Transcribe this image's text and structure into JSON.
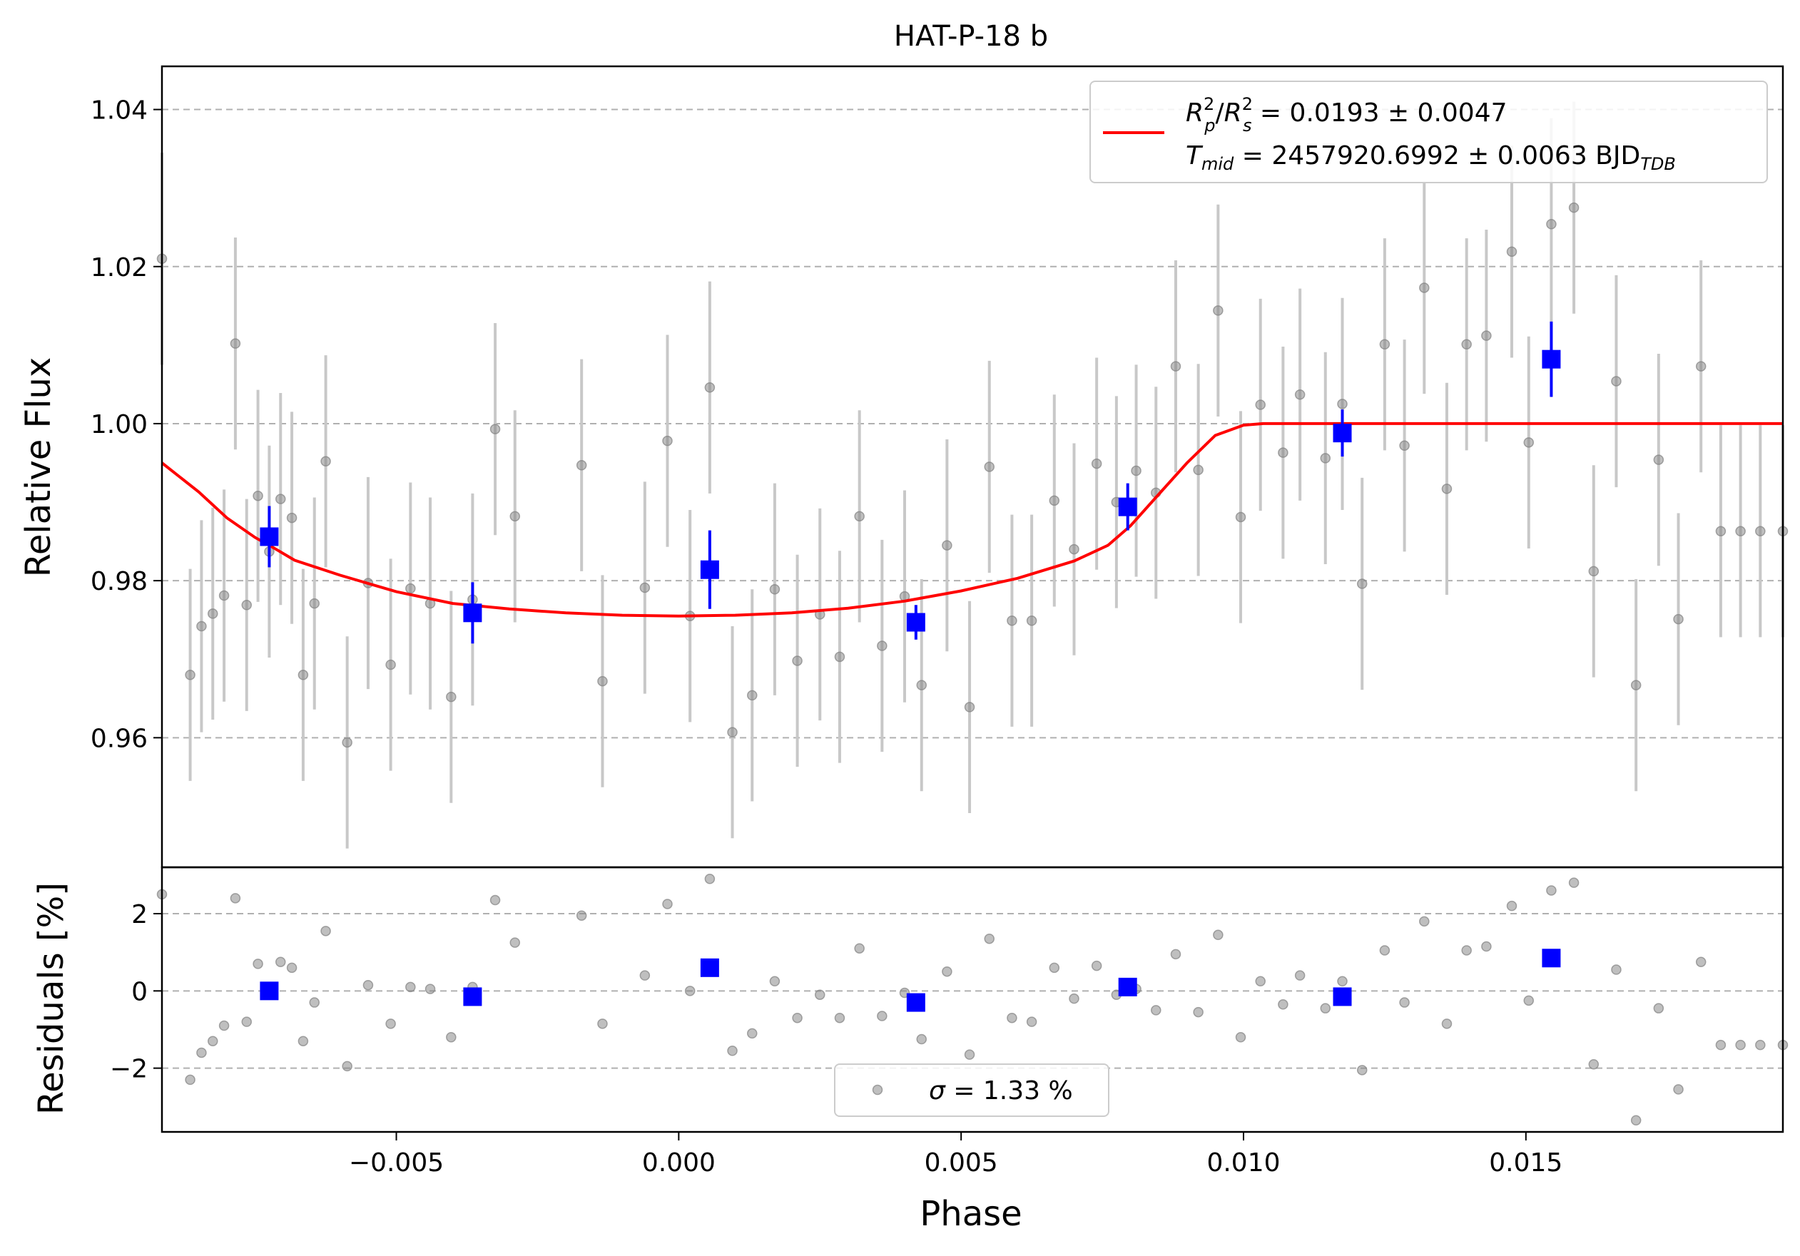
{
  "colors": {
    "model_line": "#ff0000",
    "binned": "#0000ff",
    "raw_points": "#808080",
    "raw_errorbars": "#c8c8c8",
    "grid": "#b0b0b0"
  },
  "chart_data": [
    {
      "type": "scatter",
      "title": "HAT-P-18 b",
      "xlabel": "",
      "ylabel": "Relative Flux",
      "xlim": [
        -0.00915,
        0.01955
      ],
      "ylim": [
        0.9435,
        1.0455
      ],
      "yticks": [
        0.96,
        0.98,
        1.0,
        1.02,
        1.04
      ],
      "ytick_labels": [
        "0.96",
        "0.98",
        "1.00",
        "1.02",
        "1.04"
      ],
      "grid": "y-dashed",
      "legend_position": "top-right",
      "legend": {
        "rp_label": "R",
        "rp_sub": "p",
        "rs_label": "R",
        "rs_sub": "s",
        "sup": "2",
        "ratio_value": " = 0.0193 ± 0.0047",
        "tmid_label": "T",
        "tmid_sub": "mid",
        "tmid_value": " = 2457920.6992 ± 0.0063 BJD",
        "tdb_sub": "TDB"
      },
      "raw": {
        "x": [
          -0.00915,
          -0.00865,
          -0.00845,
          -0.00825,
          -0.00805,
          -0.00785,
          -0.00765,
          -0.00745,
          -0.00725,
          -0.00705,
          -0.00685,
          -0.00665,
          -0.00645,
          -0.00625,
          -0.00587,
          -0.0055,
          -0.0051,
          -0.00475,
          -0.0044,
          -0.00403,
          -0.00365,
          -0.00325,
          -0.0029,
          -0.00172,
          -0.00135,
          -0.0006,
          -0.0002,
          0.0002,
          0.00055,
          0.00095,
          0.0013,
          0.0017,
          0.0021,
          0.0025,
          0.00285,
          0.0032,
          0.0036,
          0.004,
          0.0043,
          0.00475,
          0.00515,
          0.0055,
          0.0059,
          0.00625,
          0.00665,
          0.007,
          0.0074,
          0.00775,
          0.0081,
          0.00845,
          0.0088,
          0.0092,
          0.00955,
          0.00995,
          0.0103,
          0.0107,
          0.011,
          0.01145,
          0.01175,
          0.0121,
          0.0125,
          0.01285,
          0.0132,
          0.0136,
          0.01395,
          0.0143,
          0.01475,
          0.01505,
          0.01545,
          0.01585,
          0.0162,
          0.0166,
          0.01695,
          0.01735,
          0.0177,
          0.0181,
          0.01845,
          0.0188,
          0.01915,
          0.01955
        ],
        "y": [
          1.021,
          0.968,
          0.9742,
          0.9758,
          0.9781,
          1.0102,
          0.9769,
          0.9908,
          0.9837,
          0.9904,
          0.988,
          0.968,
          0.9771,
          0.9952,
          0.9594,
          0.9797,
          0.9693,
          0.979,
          0.9771,
          0.9652,
          0.9776,
          0.9993,
          0.9882,
          0.9947,
          0.9672,
          0.9791,
          0.9978,
          0.9755,
          1.0046,
          0.9607,
          0.9654,
          0.9789,
          0.9698,
          0.9757,
          0.9703,
          0.9882,
          0.9717,
          0.978,
          0.9667,
          0.9845,
          0.9639,
          0.9945,
          0.9749,
          0.9749,
          0.9902,
          0.984,
          0.9949,
          0.99,
          0.994,
          0.9912,
          1.0073,
          0.9941,
          1.0144,
          0.9881,
          1.0024,
          0.9963,
          1.0037,
          0.9956,
          1.0025,
          0.9796,
          1.0101,
          0.9972,
          1.0173,
          0.9917,
          1.0101,
          1.0112,
          1.0219,
          0.9976,
          1.0254,
          1.0275,
          0.9812,
          1.0054,
          0.9667,
          0.9954,
          0.9751,
          1.0073,
          0.9863,
          0.9863,
          0.9863,
          0.9863
        ],
        "yerr": 0.0135,
        "residuals": [
          2.5,
          -2.3,
          -1.6,
          -1.3,
          -0.9,
          2.4,
          -0.8,
          0.7,
          0.05,
          0.75,
          0.6,
          -1.3,
          -0.3,
          1.55,
          -1.95,
          0.15,
          -0.85,
          0.1,
          0.05,
          -1.2,
          0.1,
          2.35,
          1.25,
          1.95,
          -0.85,
          0.4,
          2.25,
          0.0,
          2.9,
          -1.55,
          -1.1,
          0.25,
          -0.7,
          -0.1,
          -0.7,
          1.1,
          -0.65,
          -0.05,
          -1.25,
          0.5,
          -1.65,
          1.35,
          -0.7,
          -0.8,
          0.6,
          -0.2,
          0.65,
          -0.1,
          0.05,
          -0.5,
          0.95,
          -0.55,
          1.45,
          -1.2,
          0.25,
          -0.35,
          0.4,
          -0.45,
          0.25,
          -2.05,
          1.05,
          -0.3,
          1.8,
          -0.85,
          1.05,
          1.15,
          2.2,
          -0.25,
          2.6,
          2.8,
          -1.9,
          0.55,
          -3.35,
          -0.45,
          -2.55,
          0.75,
          -1.4,
          -1.4,
          -1.4,
          -1.4
        ]
      },
      "binned": {
        "x": [
          -0.00725,
          -0.00365,
          0.00055,
          0.0042,
          0.00795,
          0.01175,
          0.01545
        ],
        "y": [
          0.9856,
          0.9759,
          0.9814,
          0.9747,
          0.9894,
          0.9988,
          1.0082
        ],
        "yerr": [
          0.0039,
          0.0039,
          0.005,
          0.0022,
          0.003,
          0.003,
          0.0048
        ],
        "residuals": [
          0.0,
          -0.15,
          0.6,
          -0.3,
          0.1,
          -0.15,
          0.85
        ]
      },
      "model": {
        "x": [
          -0.00915,
          -0.0085,
          -0.008,
          -0.0075,
          -0.0072,
          -0.0068,
          -0.006,
          -0.005,
          -0.004,
          -0.003,
          -0.002,
          -0.001,
          0.0,
          0.001,
          0.002,
          0.003,
          0.004,
          0.005,
          0.006,
          0.007,
          0.0076,
          0.008,
          0.0085,
          0.009,
          0.0095,
          0.01,
          0.01035,
          0.011,
          0.012,
          0.014,
          0.016,
          0.018,
          0.01955
        ],
        "y": [
          0.995,
          0.9913,
          0.988,
          0.9855,
          0.9843,
          0.9826,
          0.9807,
          0.9786,
          0.9771,
          0.9764,
          0.9759,
          0.9756,
          0.9755,
          0.9756,
          0.9759,
          0.9765,
          0.9774,
          0.9787,
          0.9803,
          0.9825,
          0.9845,
          0.987,
          0.991,
          0.995,
          0.9985,
          0.9998,
          1.0,
          1.0,
          1.0,
          1.0,
          1.0,
          1.0,
          1.0
        ]
      }
    },
    {
      "type": "scatter",
      "xlabel": "Phase",
      "ylabel": "Residuals [%]",
      "xlim": [
        -0.00915,
        0.01955
      ],
      "ylim": [
        -3.65,
        3.2
      ],
      "yticks": [
        -2,
        0,
        2
      ],
      "ytick_labels": [
        "−2",
        "0",
        "2"
      ],
      "xticks": [
        -0.005,
        0.0,
        0.005,
        0.01,
        0.015
      ],
      "xtick_labels": [
        "−0.005",
        "0.000",
        "0.005",
        "0.010",
        "0.015"
      ],
      "grid": "y-dashed",
      "legend_position": "bottom-center",
      "legend": {
        "sigma_symbol": "σ",
        "sigma_value": " = 1.33 %"
      }
    }
  ]
}
